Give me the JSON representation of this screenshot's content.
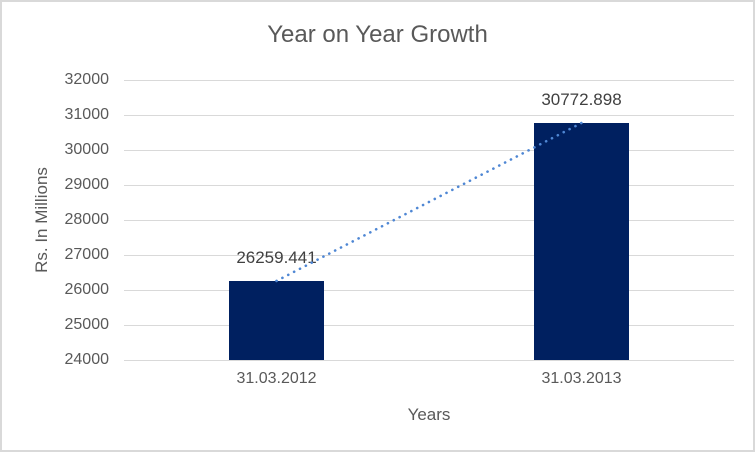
{
  "chart_data": {
    "type": "bar",
    "title": "Year on Year Growth",
    "categories": [
      "31.03.2012",
      "31.03.2013"
    ],
    "values": [
      26259.441,
      30772.898
    ],
    "data_labels": [
      "26259.441",
      "30772.898"
    ],
    "xlabel": "Years",
    "ylabel": "Rs. In Millions",
    "ylim": [
      24000,
      32000
    ],
    "yticks": [
      24000,
      25000,
      26000,
      27000,
      28000,
      29000,
      30000,
      31000,
      32000
    ],
    "grid": true,
    "legend": "none",
    "trendline": {
      "type": "linear",
      "style": "dotted"
    },
    "colors": {
      "bar": "#002060",
      "trendline": "#4f87d4",
      "gridline": "#d9d9d9",
      "axis_text": "#595959",
      "title_text": "#595959",
      "data_label_text": "#404040",
      "border": "#d9d9d9",
      "background": "#ffffff"
    }
  }
}
